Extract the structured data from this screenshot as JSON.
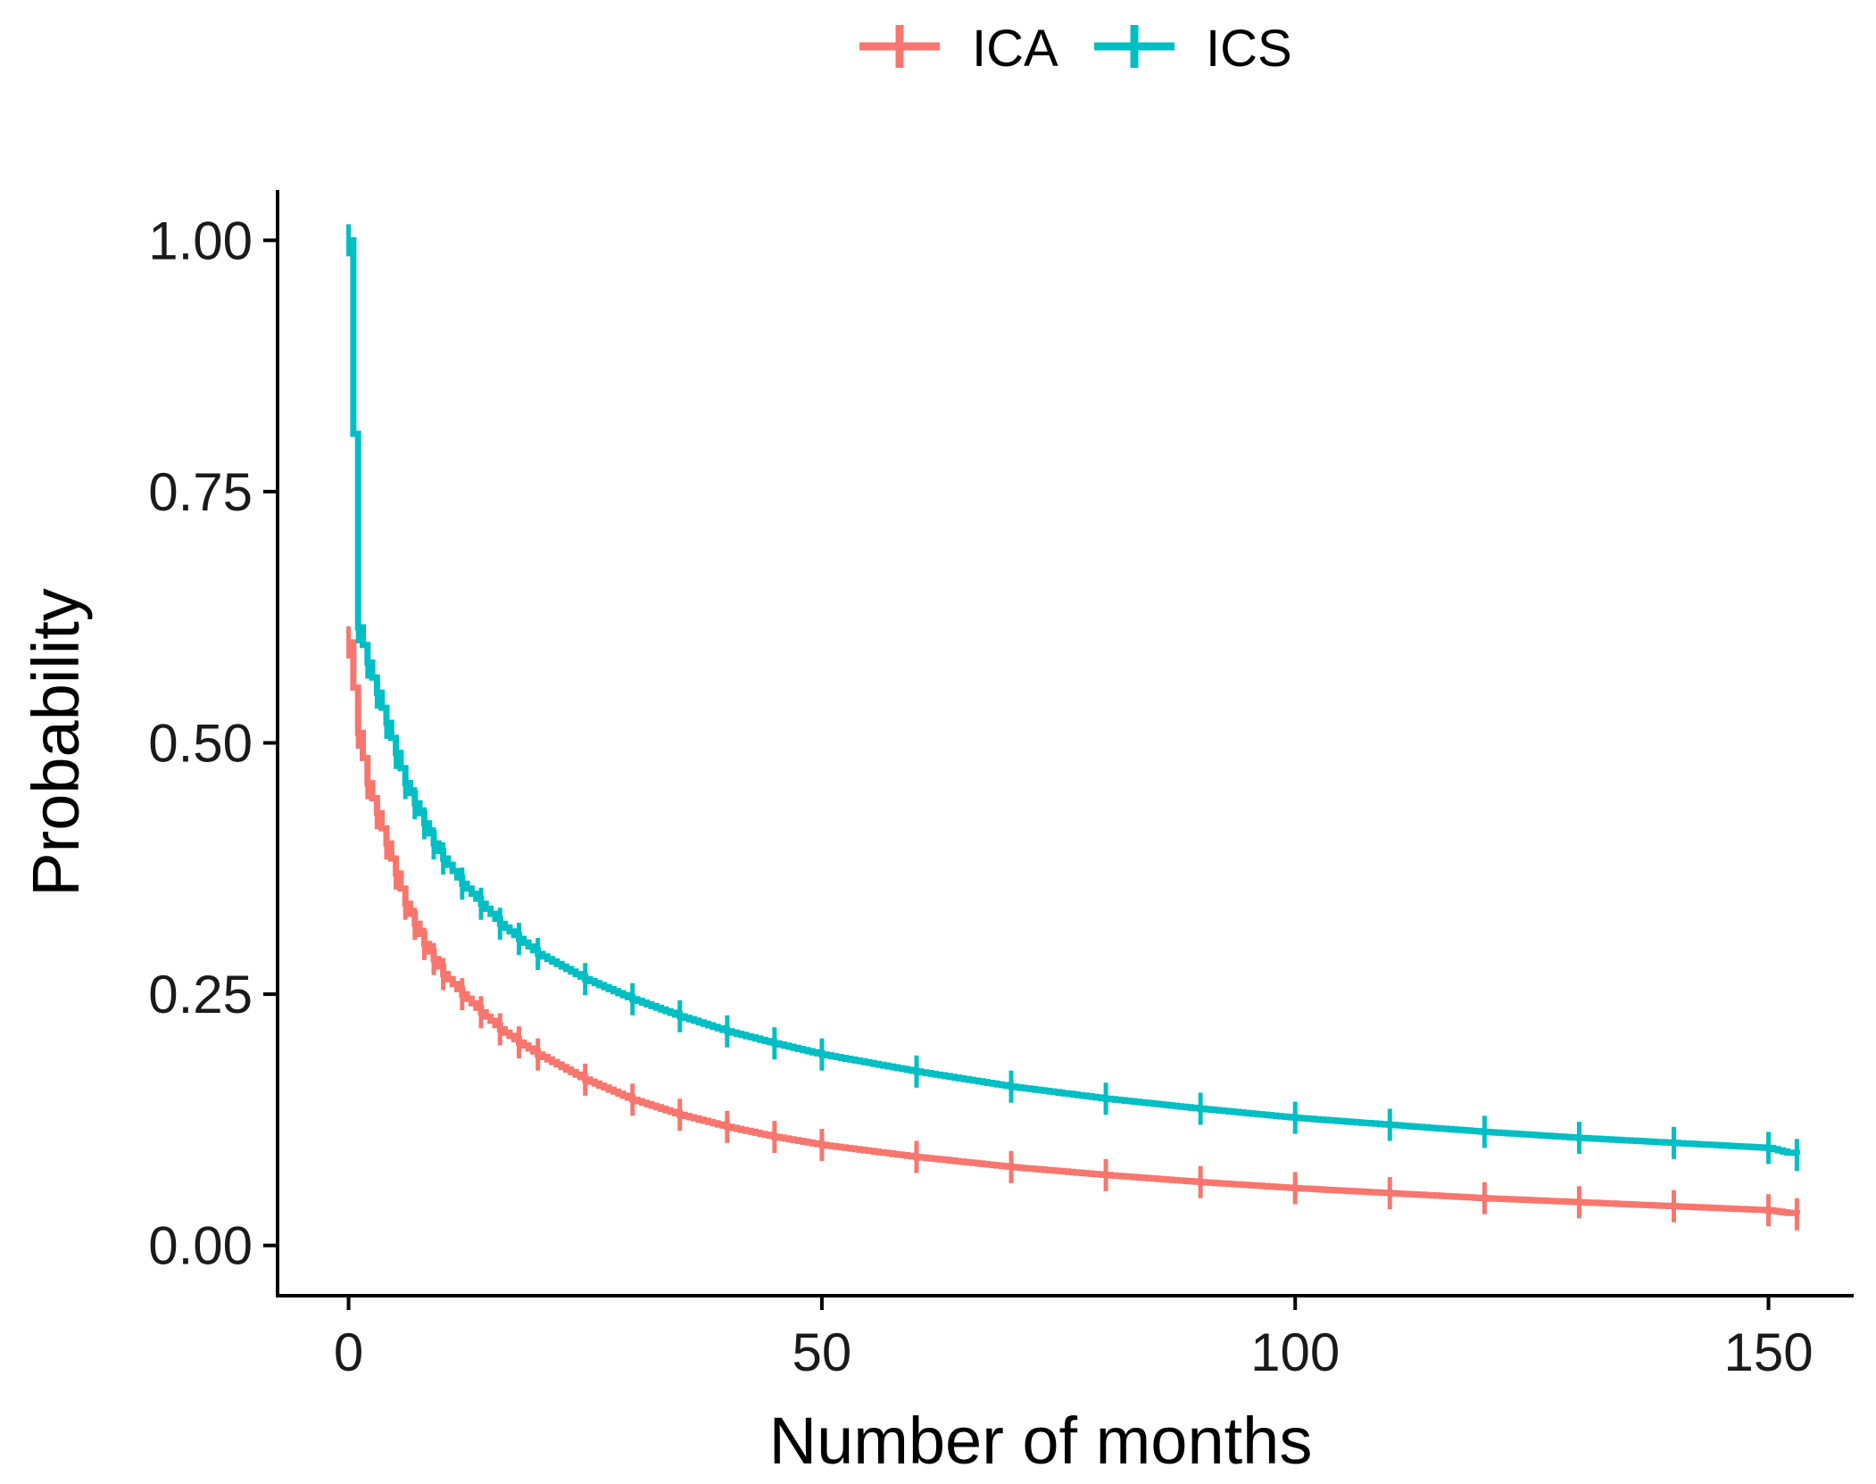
{
  "chart_data": {
    "type": "line",
    "subtype": "step",
    "title": "",
    "xlabel": "Number of months",
    "ylabel": "Probability",
    "xlim": [
      -7.5,
      159
    ],
    "ylim": [
      -0.05,
      1.05
    ],
    "xticks": [
      0,
      50,
      100,
      150
    ],
    "xtick_labels": [
      "0",
      "50",
      "100",
      "150"
    ],
    "yticks": [
      0.0,
      0.25,
      0.5,
      0.75,
      1.0
    ],
    "ytick_labels": [
      "0.00",
      "0.25",
      "0.50",
      "0.75",
      "1.00"
    ],
    "grid": false,
    "legend": {
      "position": "top",
      "entries": [
        "ICA",
        "ICS"
      ]
    },
    "series": [
      {
        "name": "ICA",
        "color": "#F8766D",
        "censor_marks": true,
        "x": [
          0,
          1,
          2,
          3,
          4,
          5,
          6,
          7,
          8,
          9,
          10,
          12,
          14,
          16,
          18,
          20,
          25,
          30,
          35,
          40,
          45,
          50,
          60,
          70,
          80,
          90,
          100,
          110,
          120,
          130,
          140,
          150,
          153
        ],
        "y": [
          0.6,
          0.51,
          0.46,
          0.43,
          0.4,
          0.37,
          0.34,
          0.32,
          0.3,
          0.285,
          0.27,
          0.25,
          0.232,
          0.215,
          0.202,
          0.19,
          0.165,
          0.145,
          0.13,
          0.118,
          0.108,
          0.1,
          0.088,
          0.078,
          0.07,
          0.063,
          0.057,
          0.052,
          0.047,
          0.043,
          0.039,
          0.035,
          0.031
        ]
      },
      {
        "name": "ICS",
        "color": "#00BFC4",
        "censor_marks": true,
        "x": [
          0,
          1,
          2,
          3,
          4,
          5,
          6,
          7,
          8,
          9,
          10,
          12,
          14,
          16,
          18,
          20,
          25,
          30,
          35,
          40,
          45,
          50,
          60,
          70,
          80,
          90,
          100,
          110,
          120,
          130,
          140,
          150,
          153
        ],
        "y": [
          1.0,
          0.615,
          0.58,
          0.55,
          0.52,
          0.49,
          0.46,
          0.44,
          0.42,
          0.4,
          0.385,
          0.36,
          0.34,
          0.32,
          0.305,
          0.29,
          0.265,
          0.245,
          0.228,
          0.213,
          0.201,
          0.19,
          0.173,
          0.158,
          0.146,
          0.136,
          0.127,
          0.12,
          0.113,
          0.107,
          0.102,
          0.097,
          0.09
        ]
      }
    ]
  }
}
